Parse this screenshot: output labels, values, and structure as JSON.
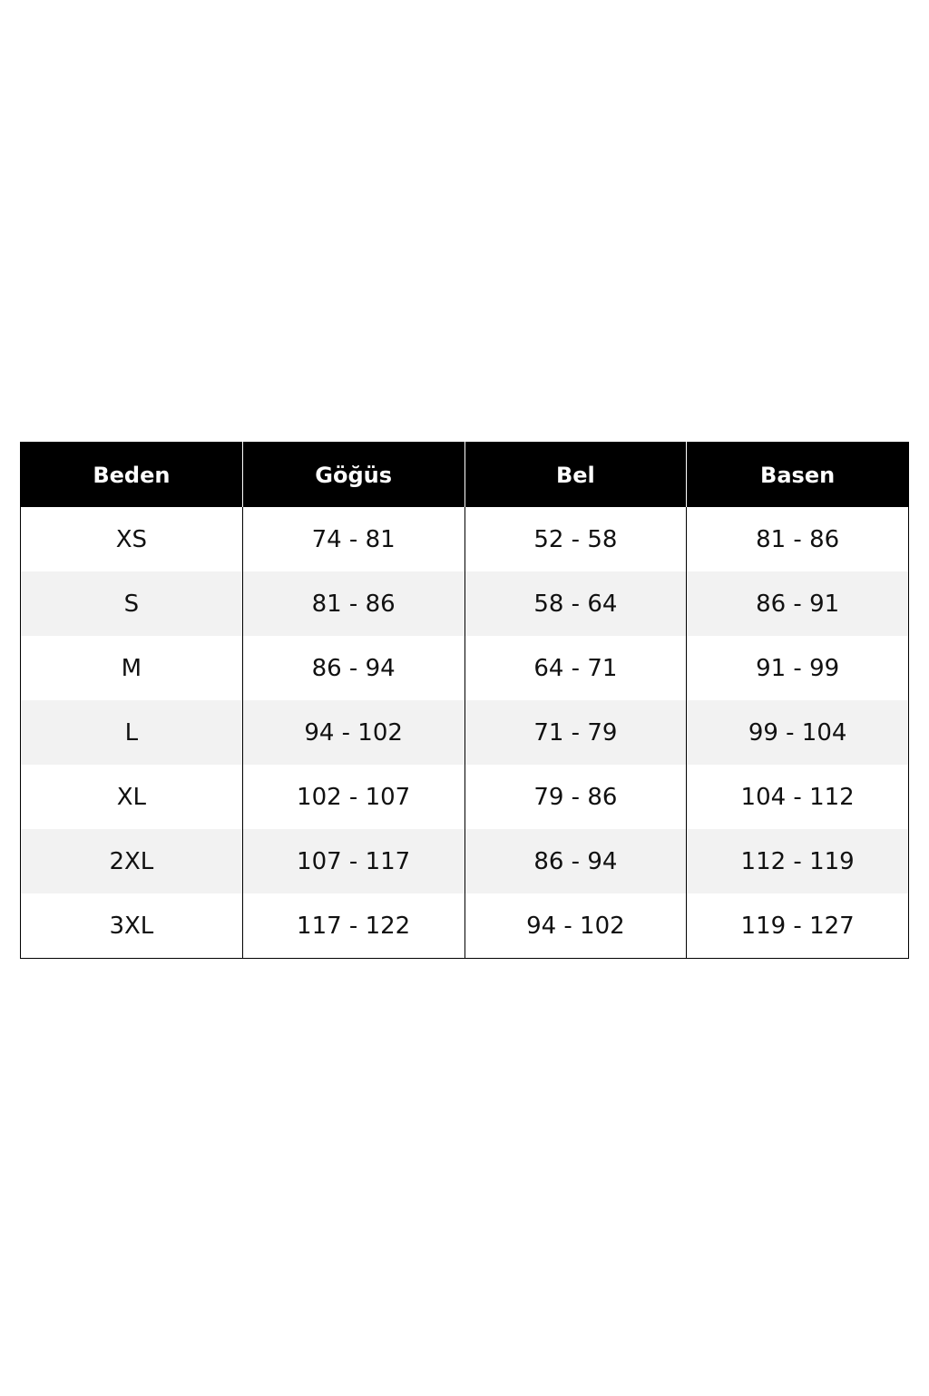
{
  "size_chart": {
    "headers": [
      "Beden",
      "Göğüs",
      "Bel",
      "Basen"
    ],
    "rows": [
      [
        "XS",
        "74 - 81",
        "52 - 58",
        "81 - 86"
      ],
      [
        "S",
        "81 - 86",
        "58 - 64",
        "86 - 91"
      ],
      [
        "M",
        "86 - 94",
        "64 - 71",
        "91 - 99"
      ],
      [
        "L",
        "94 - 102",
        "71 - 79",
        "99 - 104"
      ],
      [
        "XL",
        "102 - 107",
        "79 - 86",
        "104 - 112"
      ],
      [
        "2XL",
        "107 - 117",
        "86 - 94",
        "112 - 119"
      ],
      [
        "3XL",
        "117 - 122",
        "94 - 102",
        "119 - 127"
      ]
    ]
  }
}
